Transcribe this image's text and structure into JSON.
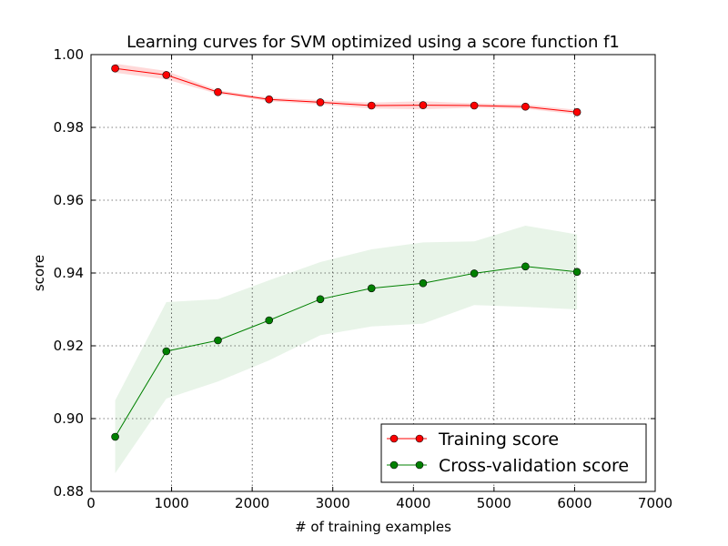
{
  "chart_data": {
    "type": "line",
    "title": "Learning curves for SVM optimized using a score function f1",
    "xlabel": "# of training examples",
    "ylabel": "score",
    "xlim": [
      0,
      7000
    ],
    "ylim": [
      0.88,
      1.0
    ],
    "x_ticks": [
      "0",
      "1000",
      "2000",
      "3000",
      "4000",
      "5000",
      "6000",
      "7000"
    ],
    "y_ticks": [
      "0.88",
      "0.90",
      "0.92",
      "0.94",
      "0.96",
      "0.98",
      "1.00"
    ],
    "grid": true,
    "legend_position": "lower-right",
    "x": [
      300,
      935,
      1575,
      2210,
      2845,
      3480,
      4120,
      4755,
      5390,
      6030
    ],
    "series": [
      {
        "name": "Training score",
        "color": "#ff0000",
        "fill_color": "#ffcccc",
        "values": [
          0.9962,
          0.9944,
          0.9897,
          0.9877,
          0.9869,
          0.986,
          0.9861,
          0.986,
          0.9857,
          0.9842
        ],
        "band_upper": [
          0.9975,
          0.9955,
          0.9902,
          0.9882,
          0.9875,
          0.9868,
          0.9872,
          0.9866,
          0.9863,
          0.9848
        ],
        "band_lower": [
          0.995,
          0.9932,
          0.9892,
          0.9872,
          0.9863,
          0.9852,
          0.985,
          0.9854,
          0.9851,
          0.9836
        ]
      },
      {
        "name": "Cross-validation score",
        "color": "#008000",
        "fill_color": "#e0f0e0",
        "values": [
          0.895,
          0.9185,
          0.9215,
          0.927,
          0.9328,
          0.9358,
          0.9372,
          0.9399,
          0.9418,
          0.9403
        ],
        "band_upper": [
          0.905,
          0.932,
          0.9328,
          0.938,
          0.943,
          0.9465,
          0.9484,
          0.9487,
          0.953,
          0.9506
        ],
        "band_lower": [
          0.885,
          0.9055,
          0.9102,
          0.916,
          0.9229,
          0.9253,
          0.9261,
          0.9312,
          0.9307,
          0.93
        ]
      }
    ]
  }
}
